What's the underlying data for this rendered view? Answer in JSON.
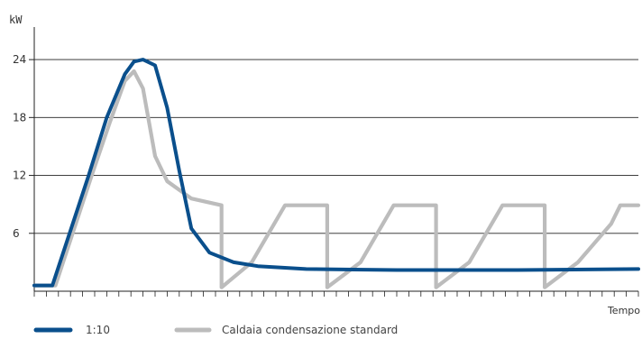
{
  "chart_data": {
    "type": "line",
    "ylabel": "kW",
    "xlabel": "Tempo",
    "ylim": [
      0,
      27
    ],
    "yticks": [
      6,
      12,
      18,
      24
    ],
    "xlim": [
      0,
      100
    ],
    "grid": "horizontal",
    "legend_position": "bottom-left",
    "series": [
      {
        "name": "1:10",
        "color": "#0a4f8c",
        "x": [
          0,
          3,
          9,
          12,
          15,
          16.5,
          18,
          20,
          22,
          24,
          26,
          29,
          33,
          37,
          45,
          60,
          80,
          100
        ],
        "y": [
          0.6,
          0.6,
          12,
          18,
          22.5,
          23.8,
          24,
          23.4,
          19,
          12.5,
          6.5,
          4,
          3,
          2.6,
          2.3,
          2.2,
          2.2,
          2.3
        ]
      },
      {
        "name": "Caldaia condensazione standard",
        "color": "#bcbcbc",
        "x": [
          0,
          3.5,
          9.5,
          12.5,
          15,
          16.5,
          18,
          20,
          22,
          26,
          31,
          31,
          36,
          41.5,
          41.5,
          48.5,
          48.5,
          54,
          59.5,
          59.5,
          66.5,
          66.5,
          72,
          77.5,
          77.5,
          84.5,
          84.5,
          90,
          95.5,
          97,
          100
        ],
        "y": [
          0.6,
          0.6,
          12,
          17.5,
          21.8,
          22.8,
          21,
          14,
          11.4,
          9.6,
          8.9,
          0.4,
          3,
          8.9,
          8.9,
          8.9,
          0.4,
          3,
          8.9,
          8.9,
          8.9,
          0.4,
          3,
          8.9,
          8.9,
          8.9,
          0.4,
          3,
          7,
          8.9,
          8.9
        ]
      }
    ]
  }
}
